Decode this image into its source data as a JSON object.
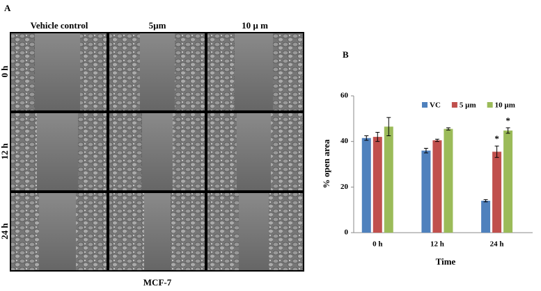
{
  "panel_a": {
    "label": "A",
    "columns": [
      "Vehicle control",
      "5µm",
      "10 µ m"
    ],
    "rows": [
      "0 h",
      "12 h",
      "24 h"
    ],
    "caption": "MCF-7"
  },
  "chart_data": {
    "type": "bar",
    "label": "B",
    "x_label": "Time",
    "y_label": "% open area",
    "categories": [
      "0 h",
      "12 h",
      "24 h"
    ],
    "series": [
      {
        "name": "VC",
        "color": "#4f81bd",
        "values": [
          41.5,
          36,
          14
        ],
        "errors": [
          1,
          1,
          0.5
        ]
      },
      {
        "name": "5 µm",
        "color": "#c0504d",
        "values": [
          42,
          40.5,
          35.5
        ],
        "errors": [
          2,
          0.5,
          2.5
        ],
        "annotations": [
          null,
          null,
          "*"
        ]
      },
      {
        "name": "10 µm",
        "color": "#9bbb59",
        "values": [
          46.5,
          45.5,
          44.8
        ],
        "errors": [
          4,
          0.5,
          1.2
        ],
        "annotations": [
          null,
          null,
          "*"
        ]
      }
    ],
    "ylim": [
      0,
      60
    ],
    "yticks": [
      0,
      20,
      40,
      60
    ],
    "grid": false,
    "legend": "top"
  }
}
